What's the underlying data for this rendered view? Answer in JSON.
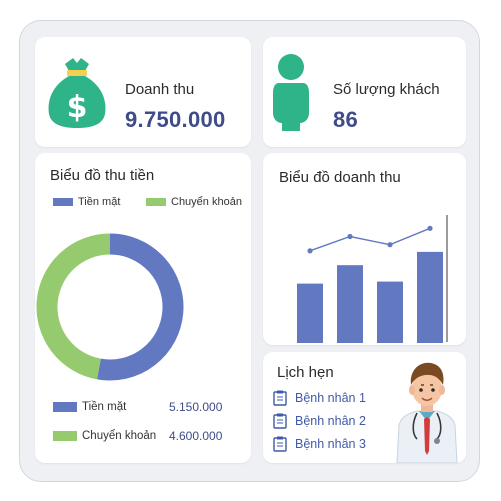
{
  "revenue": {
    "label": "Doanh thu",
    "value": "9.750.000",
    "icon": "money-bag-icon"
  },
  "customers": {
    "label": "Số lượng khách",
    "value": "86",
    "icon": "person-icon"
  },
  "payment_chart": {
    "title": "Biểu đồ thu tiền",
    "legend": [
      {
        "label": "Tiền mặt",
        "color": "#6279c2"
      },
      {
        "label": "Chuyển khoản",
        "color": "#95cb6e"
      }
    ],
    "rows": [
      {
        "label": "Tiền mặt",
        "amount": "5.150.000",
        "color": "#6279c2"
      },
      {
        "label": "Chuyển khoản",
        "amount": "4.600.000",
        "color": "#95cb6e"
      }
    ]
  },
  "revenue_chart": {
    "title": "Biểu đồ doanh thu"
  },
  "appointments": {
    "title": "Lịch hẹn",
    "items": [
      "Bệnh nhân 1",
      "Bệnh nhân 2",
      "Bệnh nhân 3"
    ]
  },
  "colors": {
    "accent": "#3f4b8a",
    "bar": "#6279c2",
    "cash": "#6279c2",
    "transfer": "#95cb6e",
    "icon_green": "#2fb389",
    "link": "#3f5aa8"
  },
  "chart_data": [
    {
      "type": "pie",
      "title": "Biểu đồ thu tiền",
      "labels": [
        "Tiền mặt",
        "Chuyển khoản"
      ],
      "values": [
        5150000,
        4600000
      ],
      "colors": [
        "#6279c2",
        "#95cb6e"
      ],
      "donut": true,
      "legend": "top"
    },
    {
      "type": "bar",
      "title": "Biểu đồ doanh thu",
      "categories": [
        "",
        "",
        "",
        ""
      ],
      "series": [
        {
          "type": "bar",
          "values": [
            58,
            76,
            60,
            89
          ]
        },
        {
          "type": "line",
          "values": [
            90,
            104,
            96,
            112
          ]
        }
      ],
      "ylim": [
        0,
        125
      ],
      "grid": false,
      "axes_ticks": false
    }
  ]
}
